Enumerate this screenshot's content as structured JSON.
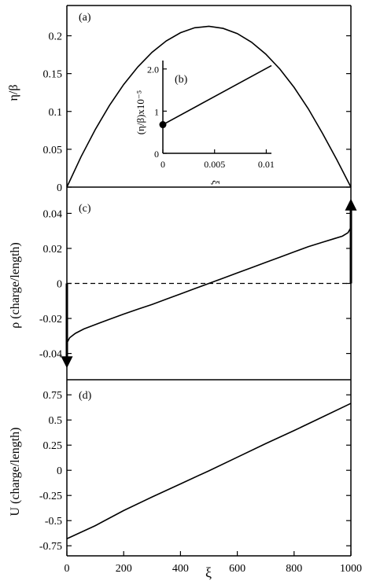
{
  "chart_data": [
    {
      "id": "a",
      "type": "line",
      "panel_label": "(a)",
      "xlabel": "",
      "ylabel": "η/β",
      "xlim": [
        0,
        1000
      ],
      "ylim": [
        0,
        0.24
      ],
      "yticks": [
        0,
        0.05,
        0.1,
        0.15,
        0.2
      ],
      "ytick_labels": [
        "0",
        "0.05",
        "0.1",
        "0.15",
        "0.2"
      ],
      "series": [
        {
          "x": [
            0,
            50,
            100,
            150,
            200,
            250,
            300,
            350,
            400,
            450,
            500,
            550,
            600,
            650,
            700,
            750,
            800,
            850,
            900,
            950,
            1000
          ],
          "y": [
            0,
            0.0402,
            0.0761,
            0.108,
            0.1356,
            0.1589,
            0.1782,
            0.1932,
            0.204,
            0.2106,
            0.2125,
            0.2098,
            0.2029,
            0.1915,
            0.1759,
            0.156,
            0.1318,
            0.1035,
            0.071,
            0.0365,
            0
          ]
        }
      ]
    },
    {
      "id": "b",
      "type": "line",
      "panel_label": "(b)",
      "xlabel": "ξ",
      "ylabel": "(η/β)x10⁻⁵",
      "xlim": [
        0,
        0.0105
      ],
      "ylim": [
        0,
        2.2
      ],
      "xticks": [
        0,
        0.005,
        0.01
      ],
      "xtick_labels": [
        "0",
        "0.005",
        "0.01"
      ],
      "yticks": [
        0,
        1,
        2
      ],
      "ytick_labels": [
        "0",
        "1",
        "2.0"
      ],
      "series": [
        {
          "x": [
            0,
            0.0105
          ],
          "y": [
            0.68,
            2.08
          ]
        }
      ],
      "marker": {
        "x": 0,
        "y": 0.68
      }
    },
    {
      "id": "c",
      "type": "line",
      "panel_label": "(c)",
      "xlabel": "",
      "ylabel": "ρ (charge/length)",
      "xlim": [
        0,
        1000
      ],
      "ylim": [
        -0.055,
        0.055
      ],
      "yticks": [
        -0.04,
        -0.02,
        0,
        0.02,
        0.04
      ],
      "ytick_labels": [
        "-0.04",
        "-0.02",
        "0",
        "0.02",
        "0.04"
      ],
      "series": [
        {
          "x": [
            0,
            10,
            30,
            60,
            100,
            150,
            200,
            250,
            300,
            350,
            400,
            450,
            500,
            550,
            600,
            650,
            700,
            750,
            800,
            850,
            900,
            940,
            970,
            990,
            1000
          ],
          "y": [
            -0.034,
            -0.031,
            -0.0285,
            -0.026,
            -0.0235,
            -0.0205,
            -0.0175,
            -0.0147,
            -0.012,
            -0.009,
            -0.006,
            -0.003,
            0,
            0.003,
            0.006,
            0.009,
            0.012,
            0.015,
            0.018,
            0.021,
            0.0235,
            0.0255,
            0.027,
            0.029,
            0.032
          ]
        }
      ],
      "reference_line": {
        "y": 0,
        "style": "dashed"
      },
      "arrows": [
        {
          "x": 0,
          "from": 0,
          "to": -0.045,
          "direction": "down"
        },
        {
          "x": 1000,
          "from": 0,
          "to": 0.045,
          "direction": "up"
        }
      ]
    },
    {
      "id": "d",
      "type": "line",
      "panel_label": "(d)",
      "xlabel": "ξ",
      "ylabel": "U (charge/length)",
      "xlim": [
        0,
        1000
      ],
      "ylim": [
        -0.85,
        0.9
      ],
      "yticks": [
        -0.75,
        -0.5,
        -0.25,
        0,
        0.25,
        0.5,
        0.75
      ],
      "ytick_labels": [
        "-0.75",
        "-0.5",
        "-0.25",
        "0",
        "0.25",
        "0.5",
        "0.75"
      ],
      "xticks": [
        0,
        200,
        400,
        600,
        800,
        1000
      ],
      "xtick_labels": [
        "0",
        "200",
        "400",
        "600",
        "800",
        "1000"
      ],
      "series": [
        {
          "x": [
            0,
            100,
            200,
            300,
            400,
            500,
            600,
            700,
            800,
            900,
            1000
          ],
          "y": [
            -0.68,
            -0.55,
            -0.4,
            -0.265,
            -0.135,
            -0.005,
            0.13,
            0.265,
            0.395,
            0.53,
            0.665
          ]
        }
      ]
    }
  ]
}
